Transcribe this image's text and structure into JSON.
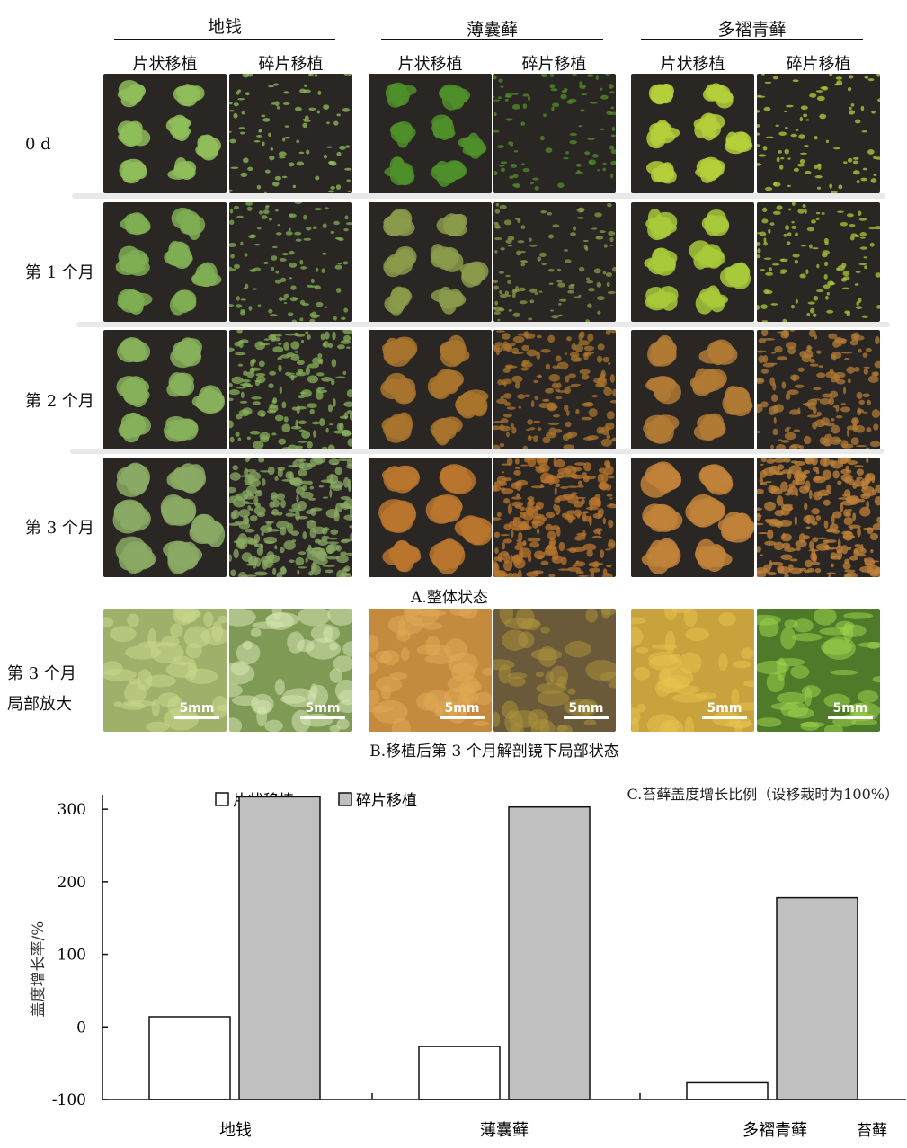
{
  "species": [
    "地钱",
    "薄囊藓",
    "多褶青藓"
  ],
  "methods": [
    "片状移植",
    "碎片移植"
  ],
  "rows": [
    "0 d",
    "第 1 个月",
    "第 2 个月",
    "第 3 个月"
  ],
  "zoom_label": [
    "第 3 个月",
    "局部放大"
  ],
  "scale_label": "5mm",
  "caption_a": "A.整体状态",
  "caption_b": "B.移植后第 3 个月解剖镜下局部状态",
  "colors": {
    "soil": "#2a2623",
    "liverwort": "#7fae52",
    "moss_orange": "#b8762e",
    "moss_green": "#a8c93a",
    "bar_sheet": "#ffffff",
    "bar_frag": "#c0c0c0"
  },
  "chart_data": {
    "type": "bar",
    "title": "C.苔藓盖度增长比例（设移栽时为100%）",
    "ylabel": "盖度增长率/%",
    "xlabel": "苔藓",
    "categories": [
      "地钱",
      "薄囊藓",
      "多褶青藓"
    ],
    "series": [
      {
        "name": "片状移植",
        "values": [
          14,
          -27,
          -77
        ]
      },
      {
        "name": "碎片移植",
        "values": [
          317,
          303,
          178
        ]
      }
    ],
    "ylim": [
      -100,
      320
    ],
    "yticks": [
      "300",
      "200",
      "100",
      "0",
      "-100"
    ],
    "grid": false,
    "legend": "top-left"
  }
}
